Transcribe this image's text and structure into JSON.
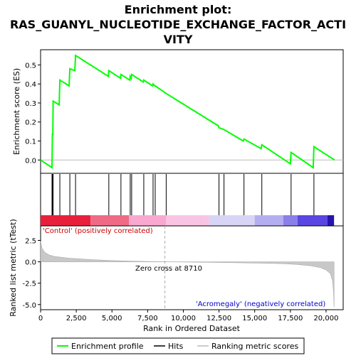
{
  "chart_data": {
    "type": "line",
    "title_lines": [
      "Enrichment plot:",
      "RAS_GUANYL_NUCLEOTIDE_EXCHANGE_FACTOR_ACTI",
      "VITY"
    ],
    "es_panel": {
      "ylabel": "Enrichment score (ES)",
      "ylim": [
        -0.07,
        0.58
      ],
      "yticks": [
        0.0,
        0.1,
        0.2,
        0.3,
        0.4,
        0.5
      ],
      "ytick_labels": [
        "0.0",
        "0.1",
        "0.2",
        "0.3",
        "0.4",
        "0.5"
      ],
      "color": "#00ff00",
      "points": [
        [
          0,
          0.0
        ],
        [
          800,
          -0.04
        ],
        [
          830,
          0.14
        ],
        [
          860,
          0.13
        ],
        [
          880,
          0.31
        ],
        [
          1300,
          0.29
        ],
        [
          1350,
          0.42
        ],
        [
          2000,
          0.39
        ],
        [
          2050,
          0.48
        ],
        [
          2400,
          0.47
        ],
        [
          2450,
          0.55
        ],
        [
          4750,
          0.44
        ],
        [
          4780,
          0.47
        ],
        [
          5600,
          0.43
        ],
        [
          5630,
          0.45
        ],
        [
          6250,
          0.42
        ],
        [
          6280,
          0.44
        ],
        [
          6350,
          0.43
        ],
        [
          6380,
          0.45
        ],
        [
          7200,
          0.41
        ],
        [
          7230,
          0.42
        ],
        [
          7850,
          0.39
        ],
        [
          7880,
          0.4
        ],
        [
          8000,
          0.39
        ],
        [
          8030,
          0.39
        ],
        [
          8800,
          0.35
        ],
        [
          12450,
          0.18
        ],
        [
          12500,
          0.17
        ],
        [
          12850,
          0.16
        ],
        [
          14200,
          0.1
        ],
        [
          14250,
          0.11
        ],
        [
          15450,
          0.06
        ],
        [
          15500,
          0.08
        ],
        [
          17500,
          -0.02
        ],
        [
          17550,
          0.04
        ],
        [
          19100,
          -0.04
        ],
        [
          19150,
          0.07
        ],
        [
          20600,
          0.0
        ]
      ]
    },
    "hits": [
      800,
      830,
      880,
      1350,
      2050,
      2450,
      4780,
      5630,
      6280,
      6380,
      7230,
      7880,
      8030,
      8800,
      12500,
      12850,
      14250,
      15500,
      17550,
      19150
    ],
    "metric_panel": {
      "ylabel": "Ranked list metric (tTest)",
      "ylim": [
        -5.6,
        4.2
      ],
      "yticks": [
        -5.0,
        -2.5,
        0.0,
        2.5
      ],
      "ytick_labels": [
        "-5.0",
        "-2.5",
        "0.0",
        "2.5"
      ],
      "curve": [
        [
          0,
          2.4
        ],
        [
          100,
          1.6
        ],
        [
          300,
          1.1
        ],
        [
          600,
          0.8
        ],
        [
          1000,
          0.62
        ],
        [
          2000,
          0.42
        ],
        [
          3500,
          0.26
        ],
        [
          5000,
          0.15
        ],
        [
          6500,
          0.07
        ],
        [
          7800,
          0.03
        ],
        [
          8710,
          0.0
        ],
        [
          10000,
          -0.03
        ],
        [
          12000,
          -0.07
        ],
        [
          14000,
          -0.12
        ],
        [
          15500,
          -0.16
        ],
        [
          17000,
          -0.22
        ],
        [
          18000,
          -0.32
        ],
        [
          19000,
          -0.48
        ],
        [
          19600,
          -0.68
        ],
        [
          20000,
          -0.95
        ],
        [
          20300,
          -1.4
        ],
        [
          20450,
          -2.2
        ],
        [
          20520,
          -3.5
        ],
        [
          20560,
          -5.3
        ]
      ],
      "zero_cross_label": "Zero cross at 8710",
      "zero_cross_x": 8710,
      "positive_label": "'Control' (positively correlated)",
      "negative_label": "'Acromegaly' (negatively correlated)"
    },
    "xlabel": "Rank in Ordered Dataset",
    "xlim": [
      0,
      21200
    ],
    "xticks": [
      0,
      2500,
      5000,
      7500,
      10000,
      12500,
      15000,
      17500,
      20000
    ],
    "xtick_labels": [
      "0",
      "2,500",
      "5,000",
      "7,500",
      "10,000",
      "12,500",
      "15,000",
      "17,500",
      "20,000"
    ],
    "colorbar_segments": [
      {
        "from": 0,
        "to": 3500,
        "color": "#e8203c"
      },
      {
        "from": 3500,
        "to": 6200,
        "color": "#f06a86"
      },
      {
        "from": 6200,
        "to": 8800,
        "color": "#f9a8d0"
      },
      {
        "from": 8800,
        "to": 11800,
        "color": "#f9c4e4"
      },
      {
        "from": 11800,
        "to": 15000,
        "color": "#d8d4f6"
      },
      {
        "from": 15000,
        "to": 17000,
        "color": "#b4aef0"
      },
      {
        "from": 17000,
        "to": 18000,
        "color": "#8a80ea"
      },
      {
        "from": 18000,
        "to": 20100,
        "color": "#5a46e0"
      },
      {
        "from": 20100,
        "to": 20560,
        "color": "#2414b0"
      }
    ],
    "legend": [
      {
        "label": "Enrichment profile",
        "color": "#00ff00"
      },
      {
        "label": "Hits",
        "color": "#000000"
      },
      {
        "label": "Ranking metric scores",
        "color": "#bbbbbb"
      }
    ]
  }
}
